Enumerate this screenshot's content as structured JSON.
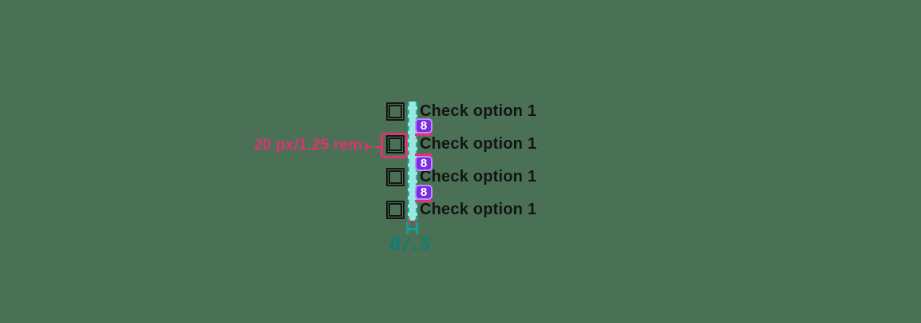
{
  "canvas": {
    "background_color": "#4a7156"
  },
  "checkbox_group": {
    "rows": [
      {
        "label": "Check option 1",
        "checked": false
      },
      {
        "label": "Check option 1",
        "checked": false
      },
      {
        "label": "Check option 1",
        "checked": false
      },
      {
        "label": "Check option 1",
        "checked": false
      }
    ]
  },
  "spec_annotations": {
    "checkbox_size": {
      "text": "20 px/1.25 rem",
      "color": "#e0326e",
      "target": "checkbox-row-2"
    },
    "row_gap_badges": [
      "8",
      "8",
      "8"
    ],
    "badge_fill_color": "#7c2be5",
    "badge_border_color": "#bb8ef8",
    "horizontal_gap": {
      "bar_fill_color": "#98e9e2",
      "bar_edge_color": "#1aada6",
      "width_text": "8/.5",
      "text_color": "#0c7e77"
    }
  }
}
